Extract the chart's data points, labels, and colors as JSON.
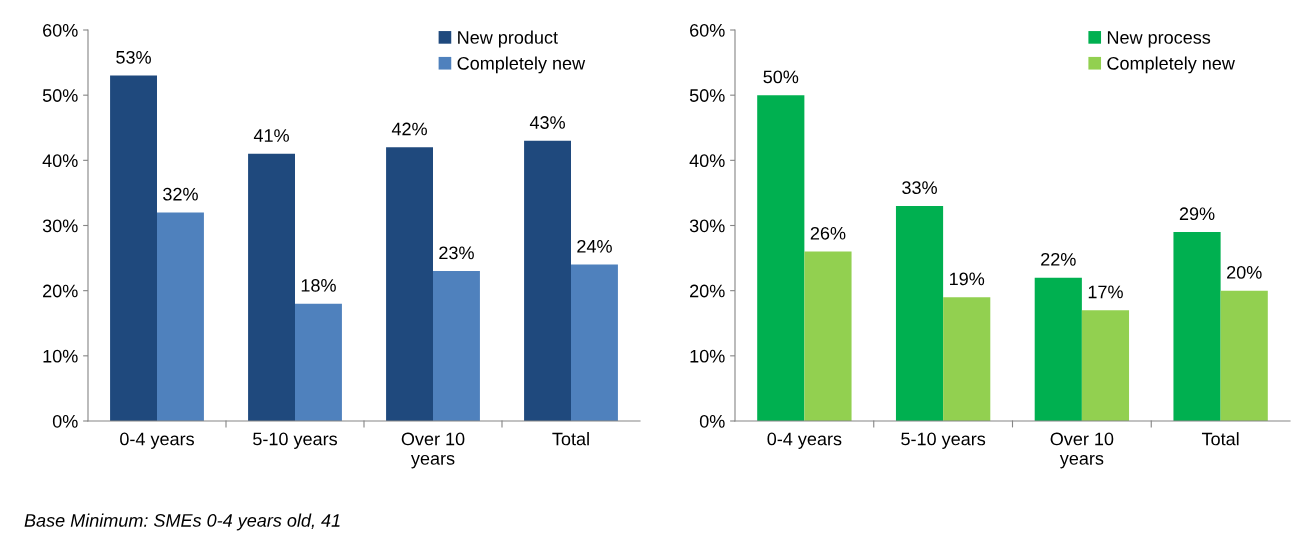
{
  "chart_data": [
    {
      "type": "bar",
      "categories": [
        "0-4 years",
        "5-10 years",
        "Over 10\nyears",
        "Total"
      ],
      "series": [
        {
          "name": "New product",
          "color": "#1f497d",
          "values": [
            53,
            41,
            42,
            43
          ],
          "value_labels": [
            "53%",
            "41%",
            "42%",
            "43%"
          ]
        },
        {
          "name": "Completely new",
          "color": "#4f81bd",
          "values": [
            32,
            18,
            23,
            24
          ],
          "value_labels": [
            "32%",
            "18%",
            "23%",
            "24%"
          ]
        }
      ],
      "ylim": [
        0,
        60
      ],
      "yticks": [
        {
          "value": 0,
          "label": "0%"
        },
        {
          "value": 10,
          "label": "10%"
        },
        {
          "value": 20,
          "label": "20%"
        },
        {
          "value": 30,
          "label": "30%"
        },
        {
          "value": 40,
          "label": "40%"
        },
        {
          "value": 50,
          "label": "50%"
        },
        {
          "value": 60,
          "label": "60%"
        }
      ],
      "grid": false,
      "legend": "top right",
      "annotations": [
        "Base Minimum: SMEs 0-4 years old, 41"
      ]
    },
    {
      "type": "bar",
      "categories": [
        "0-4 years",
        "5-10 years",
        "Over 10\nyears",
        "Total"
      ],
      "series": [
        {
          "name": "New process",
          "color": "#00b050",
          "values": [
            50,
            33,
            22,
            29
          ],
          "value_labels": [
            "50%",
            "33%",
            "22%",
            "29%"
          ]
        },
        {
          "name": "Completely new",
          "color": "#92d050",
          "values": [
            26,
            19,
            17,
            20
          ],
          "value_labels": [
            "26%",
            "19%",
            "17%",
            "20%"
          ]
        }
      ],
      "ylim": [
        0,
        60
      ],
      "yticks": [
        {
          "value": 0,
          "label": "0%"
        },
        {
          "value": 10,
          "label": "10%"
        },
        {
          "value": 20,
          "label": "20%"
        },
        {
          "value": 30,
          "label": "30%"
        },
        {
          "value": 40,
          "label": "40%"
        },
        {
          "value": 50,
          "label": "50%"
        },
        {
          "value": 60,
          "label": "60%"
        }
      ],
      "grid": false,
      "legend": "top right"
    }
  ]
}
